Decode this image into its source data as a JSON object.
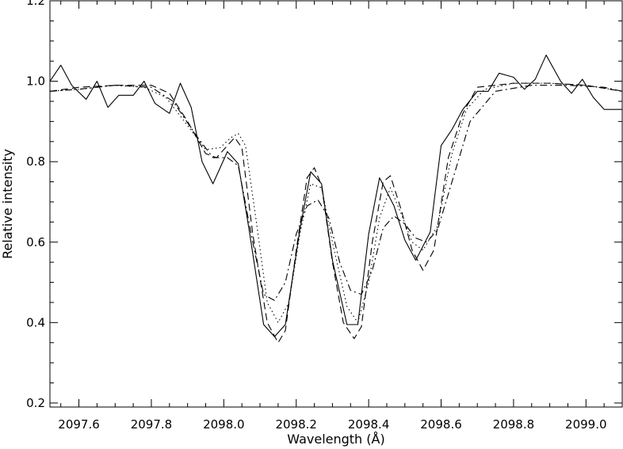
{
  "chart_data": {
    "type": "line",
    "xlabel": "Wavelength (Å)",
    "ylabel": "Relative intensity",
    "xlim": [
      2097.52,
      2099.1
    ],
    "ylim": [
      0.19,
      1.2
    ],
    "x_ticks": [
      2097.6,
      2097.8,
      2098.0,
      2098.2,
      2098.4,
      2098.6,
      2098.8,
      2099.0
    ],
    "x_tick_labels": [
      "2097.6",
      "2097.8",
      "2098.0",
      "2098.2",
      "2098.4",
      "2098.6",
      "2098.8",
      "2099.0"
    ],
    "y_ticks": [
      0.2,
      0.4,
      0.6,
      0.8,
      1.0,
      1.2
    ],
    "y_tick_labels": [
      "0.2",
      "0.4",
      "0.6",
      "0.8",
      "1.0",
      "1.2"
    ],
    "grid": false,
    "legend": "none",
    "series": [
      {
        "style": "solid",
        "x": [
          2097.52,
          2097.55,
          2097.58,
          2097.62,
          2097.65,
          2097.68,
          2097.71,
          2097.75,
          2097.78,
          2097.81,
          2097.85,
          2097.88,
          2097.91,
          2097.94,
          2097.97,
          2098.01,
          2098.04,
          2098.07,
          2098.11,
          2098.14,
          2098.17,
          2098.21,
          2098.24,
          2098.27,
          2098.3,
          2098.34,
          2098.37,
          2098.4,
          2098.43,
          2098.47,
          2098.5,
          2098.53,
          2098.57,
          2098.6,
          2098.63,
          2098.66,
          2098.7,
          2098.73,
          2098.76,
          2098.8,
          2098.83,
          2098.86,
          2098.89,
          2098.93,
          2098.96,
          2098.99,
          2099.02,
          2099.05,
          2099.08,
          2099.1
        ],
        "y": [
          1.0,
          1.04,
          0.99,
          0.955,
          1.0,
          0.935,
          0.965,
          0.965,
          1.0,
          0.945,
          0.92,
          0.995,
          0.935,
          0.8,
          0.745,
          0.825,
          0.795,
          0.63,
          0.395,
          0.365,
          0.395,
          0.63,
          0.775,
          0.745,
          0.555,
          0.395,
          0.395,
          0.62,
          0.76,
          0.69,
          0.605,
          0.555,
          0.625,
          0.84,
          0.88,
          0.93,
          0.975,
          0.975,
          1.02,
          1.01,
          0.98,
          1.005,
          1.065,
          1.0,
          0.97,
          1.005,
          0.96,
          0.93,
          0.93,
          0.93
        ]
      },
      {
        "style": "dashed",
        "x": [
          2097.52,
          2097.6,
          2097.7,
          2097.8,
          2097.85,
          2097.9,
          2097.95,
          2097.98,
          2098.01,
          2098.03,
          2098.05,
          2098.08,
          2098.12,
          2098.15,
          2098.17,
          2098.2,
          2098.23,
          2098.25,
          2098.27,
          2098.3,
          2098.33,
          2098.36,
          2098.38,
          2098.41,
          2098.44,
          2098.46,
          2098.49,
          2098.52,
          2098.55,
          2098.58,
          2098.62,
          2098.66,
          2098.7,
          2098.8,
          2098.9,
          2099.0,
          2099.1
        ],
        "y": [
          0.975,
          0.985,
          0.99,
          0.99,
          0.97,
          0.9,
          0.82,
          0.81,
          0.84,
          0.86,
          0.835,
          0.62,
          0.4,
          0.35,
          0.38,
          0.58,
          0.76,
          0.785,
          0.74,
          0.55,
          0.4,
          0.36,
          0.39,
          0.6,
          0.75,
          0.765,
          0.68,
          0.58,
          0.53,
          0.58,
          0.81,
          0.92,
          0.985,
          0.995,
          0.995,
          0.99,
          0.975
        ]
      },
      {
        "style": "dotted",
        "x": [
          2097.52,
          2097.6,
          2097.7,
          2097.78,
          2097.84,
          2097.9,
          2097.95,
          2097.99,
          2098.02,
          2098.04,
          2098.06,
          2098.09,
          2098.12,
          2098.15,
          2098.18,
          2098.21,
          2098.24,
          2098.27,
          2098.3,
          2098.34,
          2098.37,
          2098.4,
          2098.43,
          2098.46,
          2098.49,
          2098.52,
          2098.55,
          2098.59,
          2098.63,
          2098.67,
          2098.72,
          2098.8,
          2098.9,
          2099.0,
          2099.1
        ],
        "y": [
          0.975,
          0.98,
          0.99,
          0.985,
          0.96,
          0.89,
          0.83,
          0.835,
          0.86,
          0.87,
          0.84,
          0.65,
          0.45,
          0.4,
          0.45,
          0.62,
          0.745,
          0.735,
          0.6,
          0.44,
          0.4,
          0.5,
          0.66,
          0.735,
          0.67,
          0.6,
          0.58,
          0.64,
          0.82,
          0.93,
          0.98,
          0.995,
          0.995,
          0.99,
          0.975
        ]
      },
      {
        "style": "dash-dot",
        "x": [
          2097.52,
          2097.6,
          2097.7,
          2097.8,
          2097.86,
          2097.92,
          2097.97,
          2098.01,
          2098.04,
          2098.08,
          2098.11,
          2098.14,
          2098.17,
          2098.2,
          2098.23,
          2098.26,
          2098.29,
          2098.32,
          2098.35,
          2098.38,
          2098.41,
          2098.44,
          2098.47,
          2098.5,
          2098.53,
          2098.56,
          2098.59,
          2098.63,
          2098.68,
          2098.75,
          2098.85,
          2098.95,
          2099.05,
          2099.1
        ],
        "y": [
          0.975,
          0.98,
          0.99,
          0.985,
          0.95,
          0.87,
          0.81,
          0.81,
          0.79,
          0.6,
          0.47,
          0.455,
          0.5,
          0.62,
          0.69,
          0.705,
          0.66,
          0.55,
          0.48,
          0.47,
          0.53,
          0.635,
          0.665,
          0.645,
          0.61,
          0.6,
          0.63,
          0.75,
          0.9,
          0.975,
          0.99,
          0.99,
          0.985,
          0.975
        ]
      }
    ]
  }
}
